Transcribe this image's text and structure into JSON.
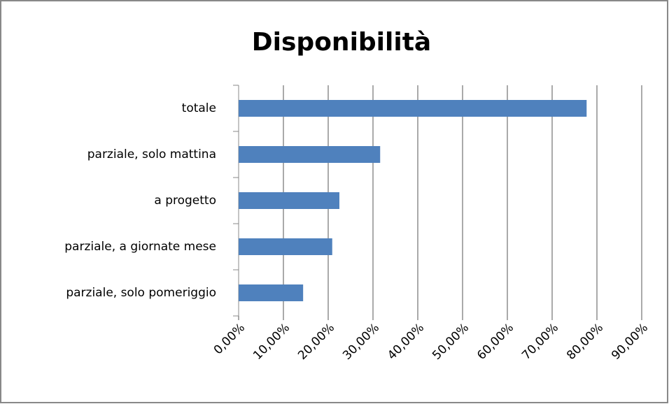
{
  "chart_data": {
    "type": "bar",
    "orientation": "horizontal",
    "title": "Disponibilità",
    "categories": [
      "totale",
      "parziale, solo mattina",
      "a progetto",
      "parziale, a giornate mese",
      "parziale, solo pomeriggio"
    ],
    "values": [
      77.7,
      31.6,
      22.5,
      20.9,
      14.4
    ],
    "color": "#4f81bd",
    "xlim": [
      0,
      90
    ],
    "xticks": [
      {
        "value": 0,
        "label": "0,00%"
      },
      {
        "value": 10,
        "label": "10,00%"
      },
      {
        "value": 20,
        "label": "20,00%"
      },
      {
        "value": 30,
        "label": "30,00%"
      },
      {
        "value": 40,
        "label": "40,00%"
      },
      {
        "value": 50,
        "label": "50,00%"
      },
      {
        "value": 60,
        "label": "60,00%"
      },
      {
        "value": 70,
        "label": "70,00%"
      },
      {
        "value": 80,
        "label": "80,00%"
      },
      {
        "value": 90,
        "label": "90,00%"
      }
    ],
    "grid": true
  }
}
